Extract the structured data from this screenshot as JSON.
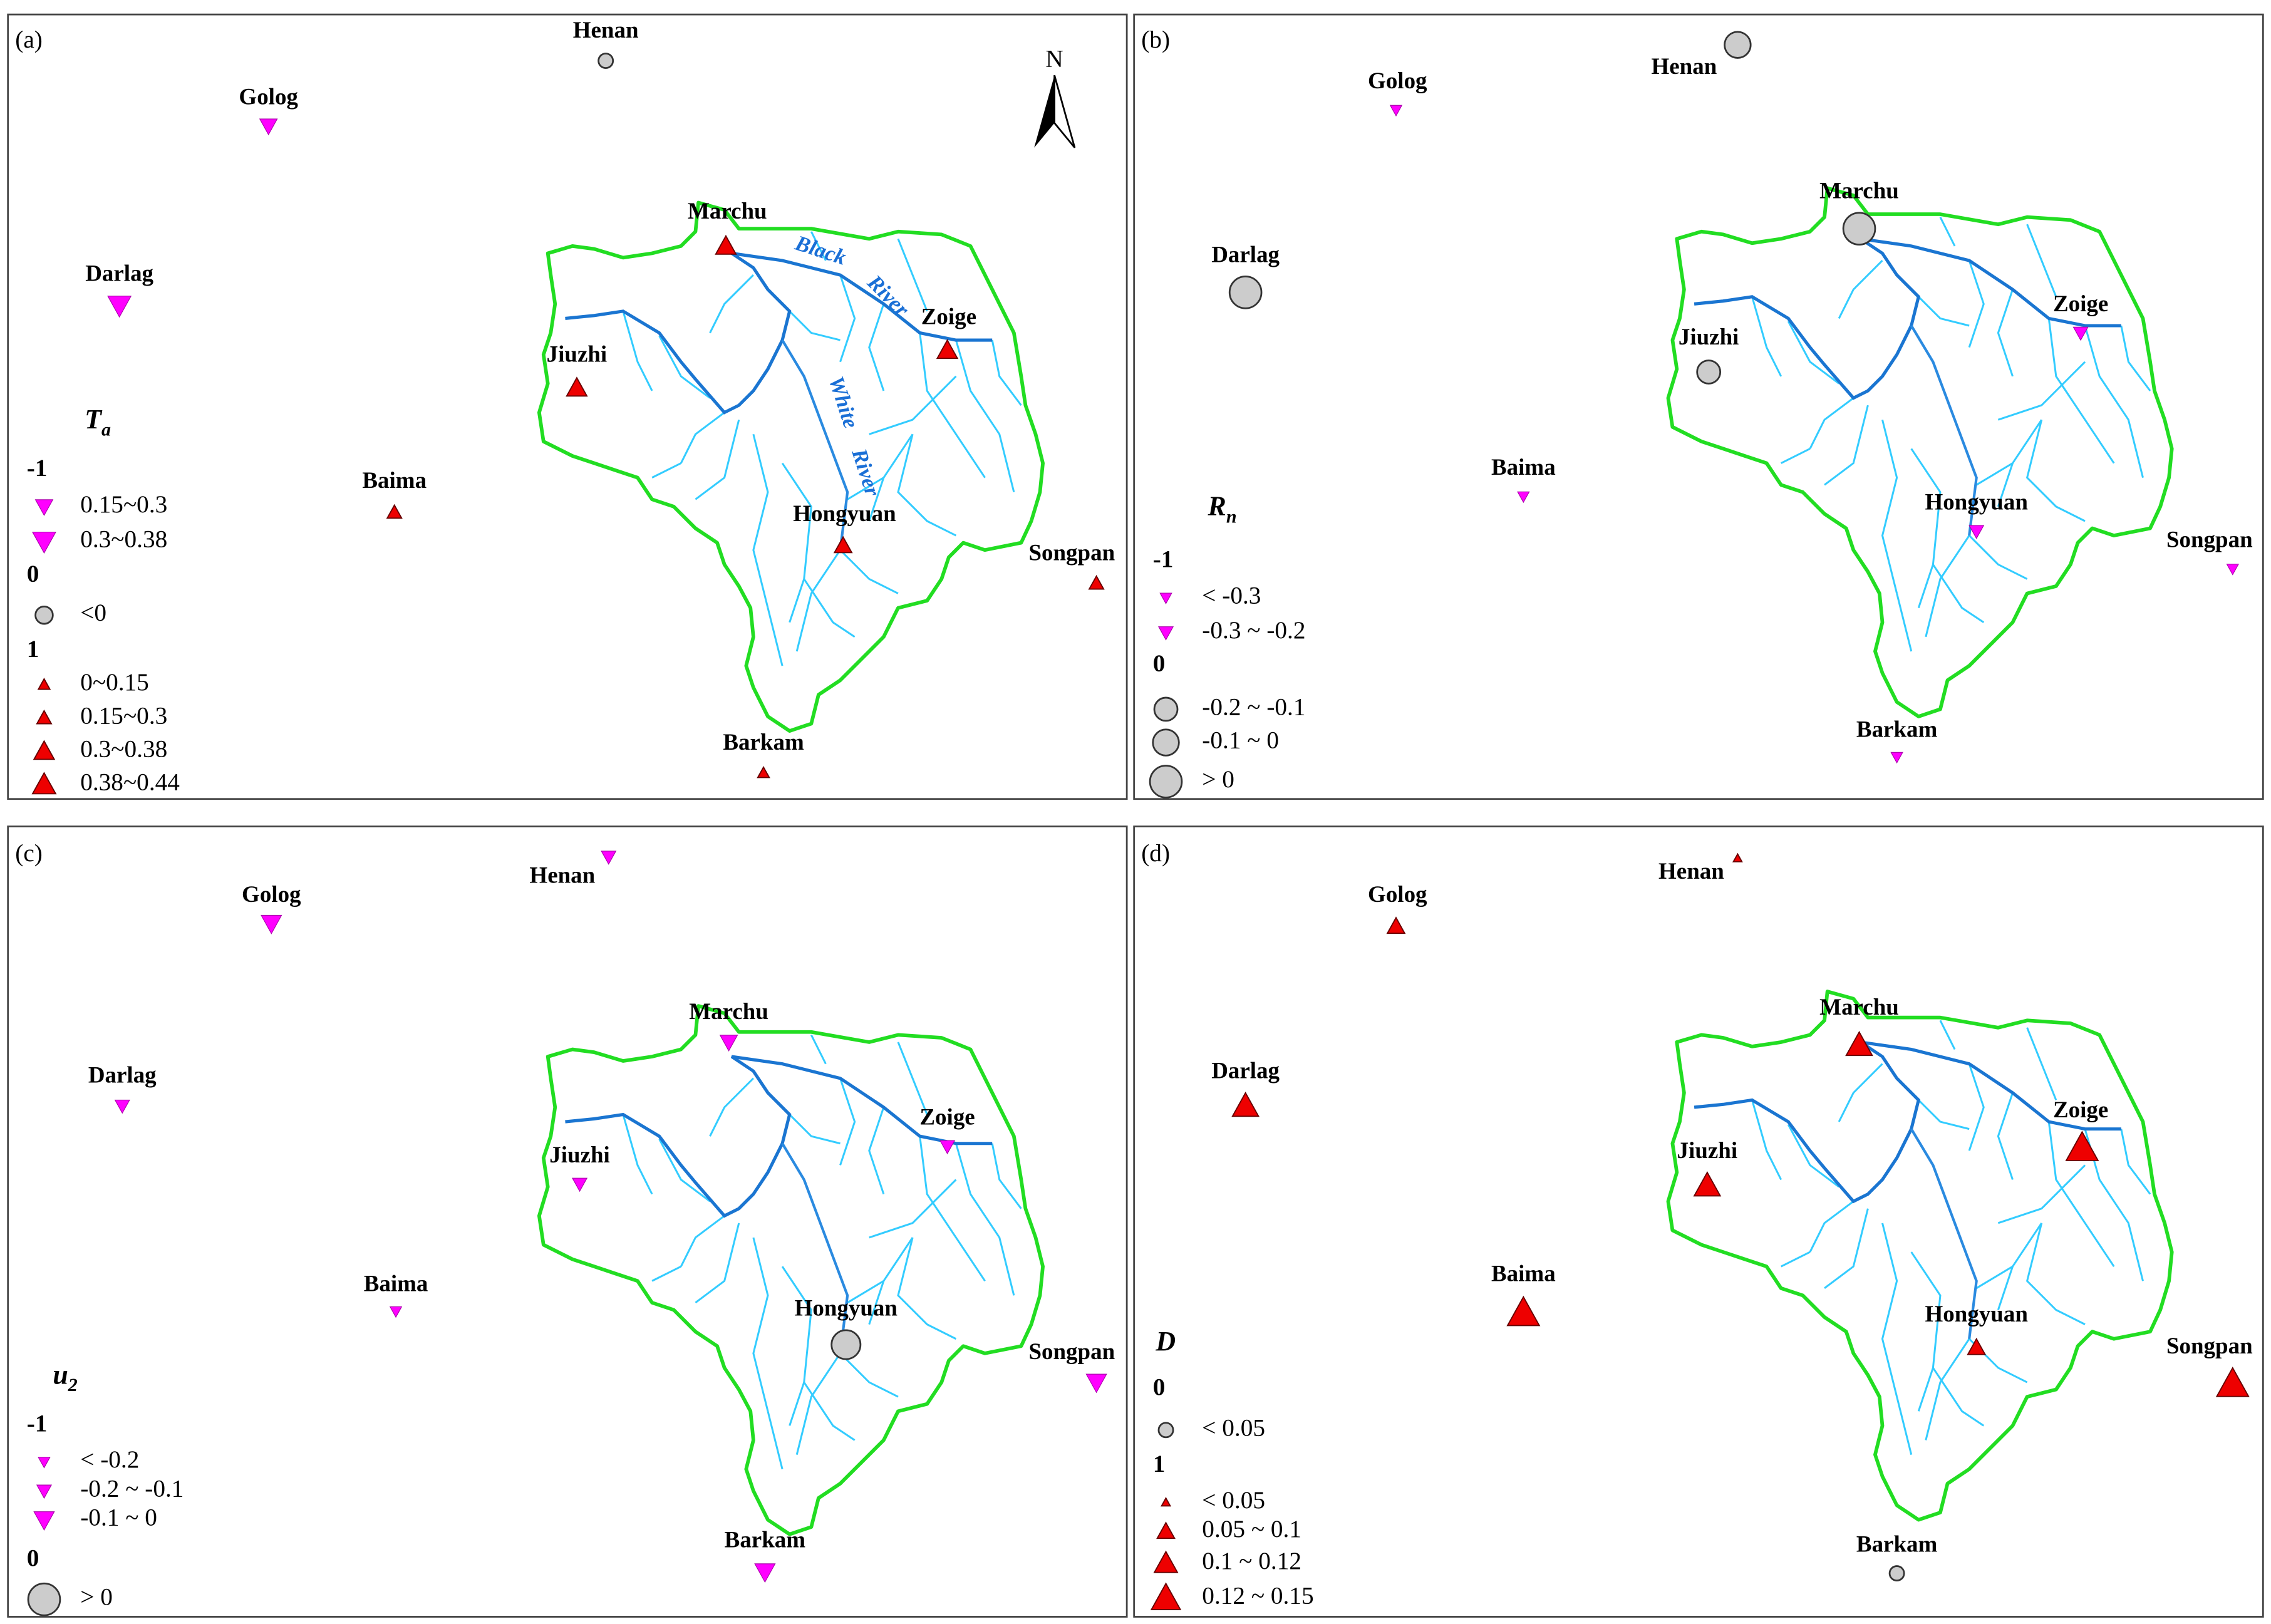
{
  "panels": [
    {
      "label": "(a)",
      "north": "N",
      "river_labels": {
        "black": [
          "Black",
          "River"
        ],
        "white": [
          "White",
          "River"
        ]
      },
      "stations": [
        "Henan",
        "Golog",
        "Darlag",
        "Jiuzhi",
        "Baima",
        "Marchu",
        "Zoige",
        "Hongyuan",
        "Songpan",
        "Barkam"
      ],
      "legend": {
        "title": {
          "base": "T",
          "sub": "a"
        },
        "groups": [
          {
            "label": "-1",
            "items": [
              "0.15~0.3",
              "0.3~0.38"
            ]
          },
          {
            "label": "0",
            "items": [
              "<0"
            ]
          },
          {
            "label": "1",
            "items": [
              "0~0.15",
              "0.15~0.3",
              "0.3~0.38",
              "0.38~0.44"
            ]
          }
        ]
      }
    },
    {
      "label": "(b)",
      "stations": [
        "Henan",
        "Golog",
        "Darlag",
        "Jiuzhi",
        "Baima",
        "Marchu",
        "Zoige",
        "Hongyuan",
        "Songpan",
        "Barkam"
      ],
      "legend": {
        "title": {
          "base": "R",
          "sub": "n"
        },
        "groups": [
          {
            "label": "-1",
            "items": [
              "< -0.3",
              "-0.3 ~ -0.2"
            ]
          },
          {
            "label": "0",
            "items": [
              "-0.2 ~ -0.1",
              "-0.1 ~ 0",
              "> 0"
            ]
          }
        ]
      }
    },
    {
      "label": "(c)",
      "stations": [
        "Henan",
        "Golog",
        "Darlag",
        "Jiuzhi",
        "Baima",
        "Marchu",
        "Zoige",
        "Hongyuan",
        "Songpan",
        "Barkam"
      ],
      "legend": {
        "title": {
          "base": "u",
          "sub": "2"
        },
        "groups": [
          {
            "label": "-1",
            "items": [
              "< -0.2",
              "-0.2 ~ -0.1",
              "-0.1 ~ 0"
            ]
          },
          {
            "label": "0",
            "items": [
              "> 0"
            ]
          }
        ]
      }
    },
    {
      "label": "(d)",
      "stations": [
        "Henan",
        "Golog",
        "Darlag",
        "Jiuzhi",
        "Baima",
        "Marchu",
        "Zoige",
        "Hongyuan",
        "Songpan",
        "Barkam"
      ],
      "legend": {
        "title": {
          "base": "D"
        },
        "groups": [
          {
            "label": "0",
            "items": [
              "< 0.05"
            ]
          },
          {
            "label": "1",
            "items": [
              "< 0.05",
              "0.05 ~ 0.1",
              "0.1 ~ 0.12",
              "0.12 ~ 0.15"
            ]
          }
        ]
      }
    }
  ]
}
